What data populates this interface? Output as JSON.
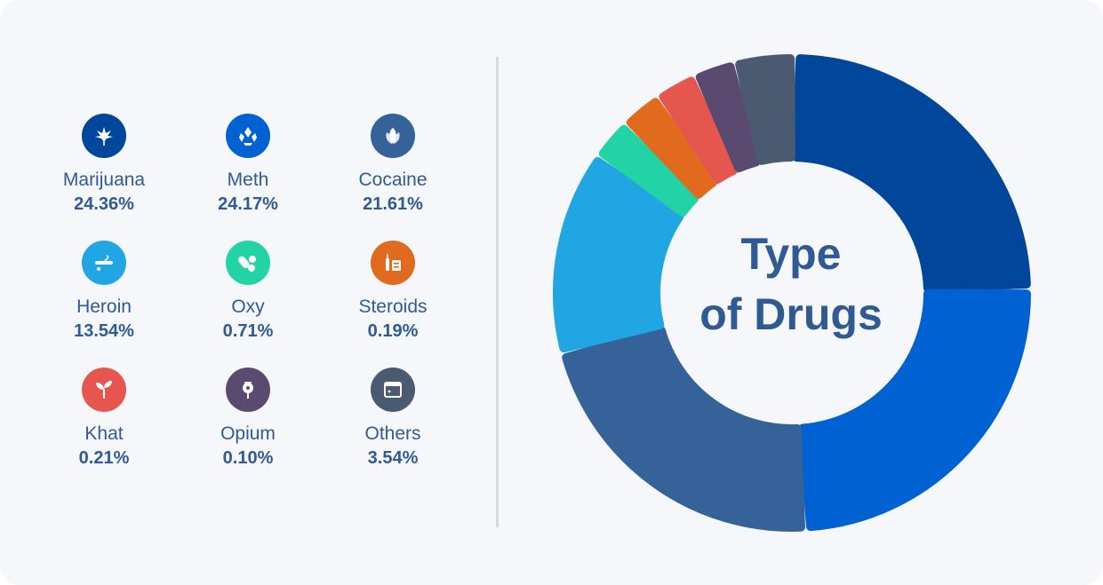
{
  "center_title": [
    "Type",
    "of Drugs"
  ],
  "chart_data": {
    "type": "pie",
    "title": "Type of Drugs",
    "series": [
      {
        "name": "Marijuana",
        "label": "24.36%",
        "value": 24.36,
        "color": "#00479b",
        "icon": "cannabis-leaf-icon"
      },
      {
        "name": "Meth",
        "label": "24.17%",
        "value": 24.17,
        "color": "#0062d2",
        "icon": "crystal-icon"
      },
      {
        "name": "Cocaine",
        "label": "21.61%",
        "value": 21.61,
        "color": "#356299",
        "icon": "coca-leaf-icon"
      },
      {
        "name": "Heroin",
        "label": "13.54%",
        "value": 13.54,
        "color": "#20a6e2",
        "icon": "smoking-pipe-icon"
      },
      {
        "name": "Oxy",
        "label": "0.71%",
        "value": 0.71,
        "color": "#22d3a5",
        "icon": "pills-icon"
      },
      {
        "name": "Steroids",
        "label": "0.19%",
        "value": 0.19,
        "color": "#e06a1d",
        "icon": "syringe-icon"
      },
      {
        "name": "Khat",
        "label": "0.21%",
        "value": 0.21,
        "color": "#e5564e",
        "icon": "sprout-icon"
      },
      {
        "name": "Opium",
        "label": "0.10%",
        "value": 0.1,
        "color": "#5b4a6f",
        "icon": "poppy-icon"
      },
      {
        "name": "Others",
        "label": "3.54%",
        "value": 3.54,
        "color": "#4a5a70",
        "icon": "box-icon"
      }
    ],
    "legend": "left-grid"
  }
}
